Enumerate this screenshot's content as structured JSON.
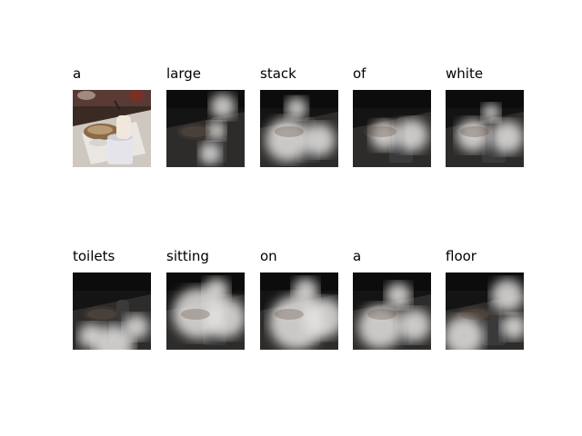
{
  "panels": [
    {
      "word": "a"
    },
    {
      "word": "large"
    },
    {
      "word": "stack"
    },
    {
      "word": "of"
    },
    {
      "word": "white"
    },
    {
      "word": "toilets"
    },
    {
      "word": "sitting"
    },
    {
      "word": "on"
    },
    {
      "word": "a"
    },
    {
      "word": "floor"
    }
  ]
}
